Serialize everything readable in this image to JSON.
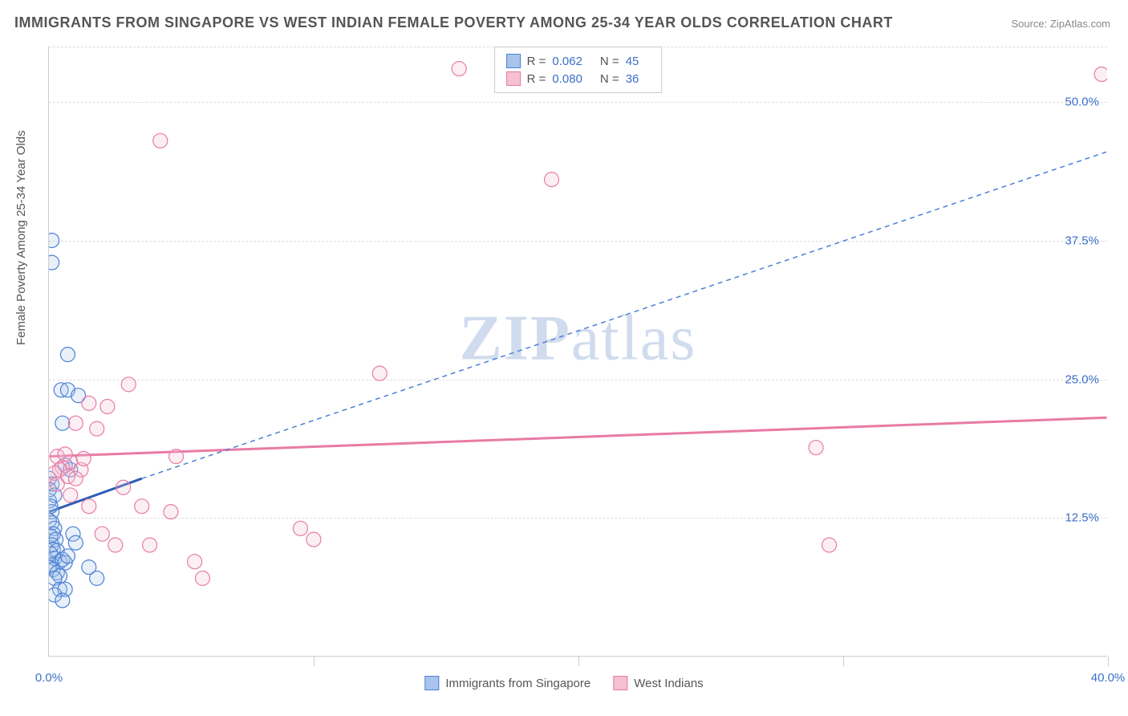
{
  "title": "IMMIGRANTS FROM SINGAPORE VS WEST INDIAN FEMALE POVERTY AMONG 25-34 YEAR OLDS CORRELATION CHART",
  "source": "Source: ZipAtlas.com",
  "yaxis_title": "Female Poverty Among 25-34 Year Olds",
  "watermark_bold": "ZIP",
  "watermark_light": "atlas",
  "chart": {
    "type": "scatter",
    "xlim": [
      0,
      40
    ],
    "ylim": [
      0,
      55
    ],
    "xticks": [
      0,
      10,
      20,
      30,
      40
    ],
    "xtick_labels": [
      "0.0%",
      "",
      "",
      "",
      "40.0%"
    ],
    "yticks": [
      12.5,
      25.0,
      37.5,
      50.0
    ],
    "ytick_labels": [
      "12.5%",
      "25.0%",
      "37.5%",
      "50.0%"
    ],
    "background_color": "#ffffff",
    "grid_color": "#dddddd",
    "axis_color": "#cccccc",
    "tick_label_color": "#3b6fc9",
    "marker_radius": 9,
    "marker_stroke_width": 1.2,
    "marker_fill_opacity": 0.25,
    "series": [
      {
        "name": "Immigrants from Singapore",
        "color_stroke": "#4a80d4",
        "color_fill": "#a8c4ec",
        "R": "0.062",
        "N": "45",
        "trend": {
          "x1": 0,
          "y1": 13.0,
          "x2": 3.5,
          "y2": 16.0,
          "solid_until_x": 3.5,
          "dash_to_x": 40,
          "dash_to_y": 45.5
        },
        "points": [
          [
            0.1,
            37.5
          ],
          [
            0.1,
            35.5
          ],
          [
            0.0,
            14.0
          ],
          [
            0.1,
            13.0
          ],
          [
            0.0,
            12.2
          ],
          [
            0.1,
            12.0
          ],
          [
            0.2,
            11.5
          ],
          [
            0.15,
            11.0
          ],
          [
            0.05,
            10.8
          ],
          [
            0.25,
            10.5
          ],
          [
            0.1,
            10.0
          ],
          [
            0.15,
            9.6
          ],
          [
            0.3,
            9.5
          ],
          [
            0.05,
            9.2
          ],
          [
            0.2,
            8.8
          ],
          [
            0.4,
            8.5
          ],
          [
            0.1,
            8.2
          ],
          [
            0.0,
            8.0
          ],
          [
            0.15,
            7.8
          ],
          [
            0.3,
            7.5
          ],
          [
            0.4,
            7.2
          ],
          [
            0.2,
            7.0
          ],
          [
            0.5,
            8.7
          ],
          [
            0.6,
            8.4
          ],
          [
            0.7,
            27.2
          ],
          [
            0.45,
            24.0
          ],
          [
            0.7,
            24.0
          ],
          [
            1.1,
            23.5
          ],
          [
            0.5,
            21.0
          ],
          [
            0.6,
            17.2
          ],
          [
            0.8,
            16.8
          ],
          [
            0.0,
            16.0
          ],
          [
            0.1,
            15.5
          ],
          [
            0.0,
            15.0
          ],
          [
            0.2,
            14.5
          ],
          [
            0.05,
            13.5
          ],
          [
            0.9,
            11.0
          ],
          [
            1.0,
            10.2
          ],
          [
            0.7,
            9.0
          ],
          [
            1.5,
            8.0
          ],
          [
            1.8,
            7.0
          ],
          [
            0.4,
            6.0
          ],
          [
            0.6,
            6.0
          ],
          [
            0.2,
            5.5
          ],
          [
            0.5,
            5.0
          ]
        ]
      },
      {
        "name": "West Indians",
        "color_stroke": "#e87ba5",
        "color_fill": "#f5c0d4",
        "R": "0.080",
        "N": "36",
        "trend": {
          "x1": 0,
          "y1": 18.0,
          "x2": 40,
          "y2": 21.5,
          "solid_until_x": 40
        },
        "points": [
          [
            15.5,
            53.0
          ],
          [
            39.8,
            52.5
          ],
          [
            4.2,
            46.5
          ],
          [
            19.0,
            43.0
          ],
          [
            12.5,
            25.5
          ],
          [
            3.0,
            24.5
          ],
          [
            1.5,
            22.8
          ],
          [
            2.2,
            22.5
          ],
          [
            1.0,
            21.0
          ],
          [
            1.8,
            20.5
          ],
          [
            0.3,
            18.0
          ],
          [
            0.8,
            17.5
          ],
          [
            0.5,
            17.0
          ],
          [
            0.4,
            16.8
          ],
          [
            1.2,
            16.8
          ],
          [
            0.2,
            16.5
          ],
          [
            0.7,
            16.2
          ],
          [
            1.0,
            16.0
          ],
          [
            0.3,
            15.5
          ],
          [
            4.8,
            18.0
          ],
          [
            3.5,
            13.5
          ],
          [
            4.6,
            13.0
          ],
          [
            2.0,
            11.0
          ],
          [
            29.0,
            18.8
          ],
          [
            29.5,
            10.0
          ],
          [
            9.5,
            11.5
          ],
          [
            10.0,
            10.5
          ],
          [
            5.5,
            8.5
          ],
          [
            3.8,
            10.0
          ],
          [
            1.5,
            13.5
          ],
          [
            2.5,
            10.0
          ],
          [
            0.8,
            14.5
          ],
          [
            5.8,
            7.0
          ],
          [
            1.3,
            17.8
          ],
          [
            2.8,
            15.2
          ],
          [
            0.6,
            18.2
          ]
        ]
      }
    ]
  },
  "legend_top": {
    "r_label": "R =",
    "n_label": "N ="
  },
  "legend_bottom": {
    "items": [
      {
        "label": "Immigrants from Singapore",
        "fill": "#a8c4ec",
        "stroke": "#4a80d4"
      },
      {
        "label": "West Indians",
        "fill": "#f5c0d4",
        "stroke": "#e87ba5"
      }
    ]
  }
}
